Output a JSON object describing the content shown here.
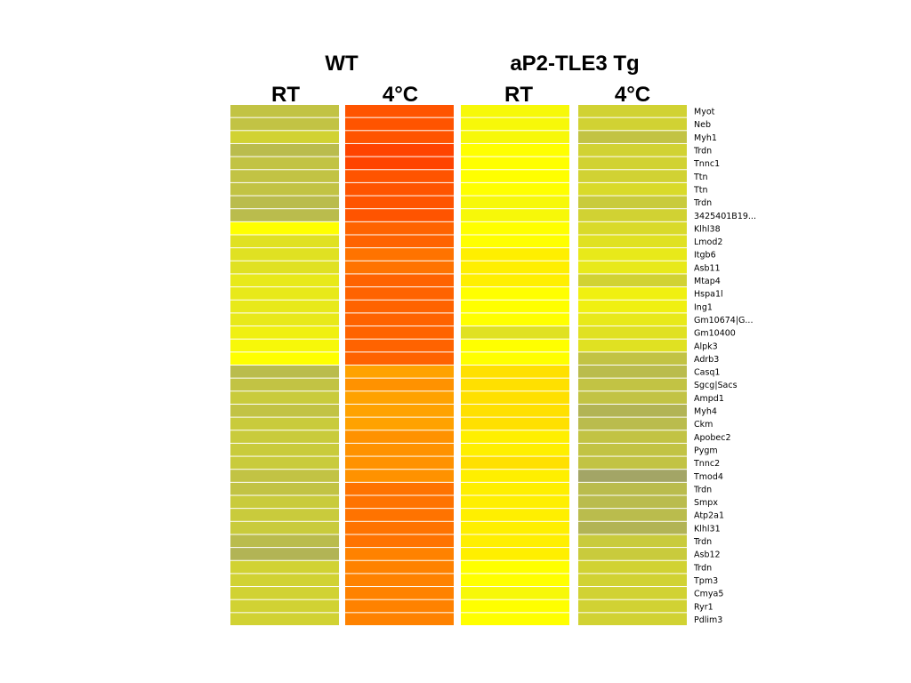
{
  "chart_data": {
    "type": "heatmap",
    "groups": [
      {
        "name": "WT",
        "columns": [
          "RT",
          "4°C"
        ]
      },
      {
        "name": "aP2-TLE3 Tg",
        "columns": [
          "RT",
          "4°C"
        ]
      }
    ],
    "columns": [
      "WT RT",
      "WT 4°C",
      "aP2-TLE3 Tg RT",
      "aP2-TLE3 Tg 4°C"
    ],
    "rows": [
      "Myot",
      "Neb",
      "Myh1",
      "Trdn",
      "Tnnc1",
      "Ttn",
      "Ttn",
      "Trdn",
      "3425401B19...",
      "Klhl38",
      "Lmod2",
      "Itgb6",
      "Asb11",
      "Mtap4",
      "Hspa1l",
      "Ing1",
      "Gm10674|G...",
      "Gm10400",
      "Alpk3",
      "Adrb3",
      "Casq1",
      "Sgcg|Sacs",
      "Ampd1",
      "Myh4",
      "Ckm",
      "Apobec2",
      "Pygm",
      "Tnnc2",
      "Tmod4",
      "Trdn",
      "Smpx",
      "Atp2a1",
      "Klhl31",
      "Trdn",
      "Asb12",
      "Trdn",
      "Tpm3",
      "Cmya5",
      "Ryr1",
      "Pdlim3"
    ],
    "values": [
      [
        2,
        21,
        9,
        4
      ],
      [
        2,
        21,
        9,
        4
      ],
      [
        4,
        21,
        9,
        2
      ],
      [
        1,
        22,
        10,
        4
      ],
      [
        2,
        22,
        10,
        4
      ],
      [
        2,
        21,
        10,
        4
      ],
      [
        2,
        21,
        10,
        5
      ],
      [
        1,
        21,
        9,
        3
      ],
      [
        1,
        21,
        9,
        4
      ],
      [
        10,
        20,
        10,
        5
      ],
      [
        6,
        20,
        10,
        6
      ],
      [
        6,
        19,
        11,
        7
      ],
      [
        6,
        19,
        11,
        7
      ],
      [
        7,
        20,
        11,
        4
      ],
      [
        7,
        20,
        10,
        8
      ],
      [
        7,
        20,
        10,
        8
      ],
      [
        7,
        20,
        10,
        7
      ],
      [
        8,
        20,
        6,
        6
      ],
      [
        9,
        20,
        10,
        6
      ],
      [
        10,
        20,
        10,
        2
      ],
      [
        1,
        16,
        12,
        1
      ],
      [
        2,
        17,
        12,
        2
      ],
      [
        3,
        16,
        12,
        2
      ],
      [
        2,
        16,
        12,
        0
      ],
      [
        3,
        16,
        12,
        1
      ],
      [
        3,
        17,
        11,
        2
      ],
      [
        3,
        17,
        11,
        2
      ],
      [
        3,
        17,
        12,
        2
      ],
      [
        2,
        17,
        11,
        -2
      ],
      [
        2,
        19,
        11,
        1
      ],
      [
        3,
        19,
        11,
        1
      ],
      [
        3,
        19,
        11,
        1
      ],
      [
        3,
        19,
        11,
        0
      ],
      [
        1,
        19,
        11,
        3
      ],
      [
        0,
        18,
        11,
        3
      ],
      [
        4,
        18,
        10,
        4
      ],
      [
        4,
        18,
        10,
        4
      ],
      [
        4,
        18,
        9,
        4
      ],
      [
        4,
        18,
        10,
        4
      ],
      [
        4,
        18,
        10,
        4
      ]
    ],
    "color_scale": {
      "low": "#a3a566",
      "mid": "#ffff00",
      "high": "#ff4400"
    }
  }
}
